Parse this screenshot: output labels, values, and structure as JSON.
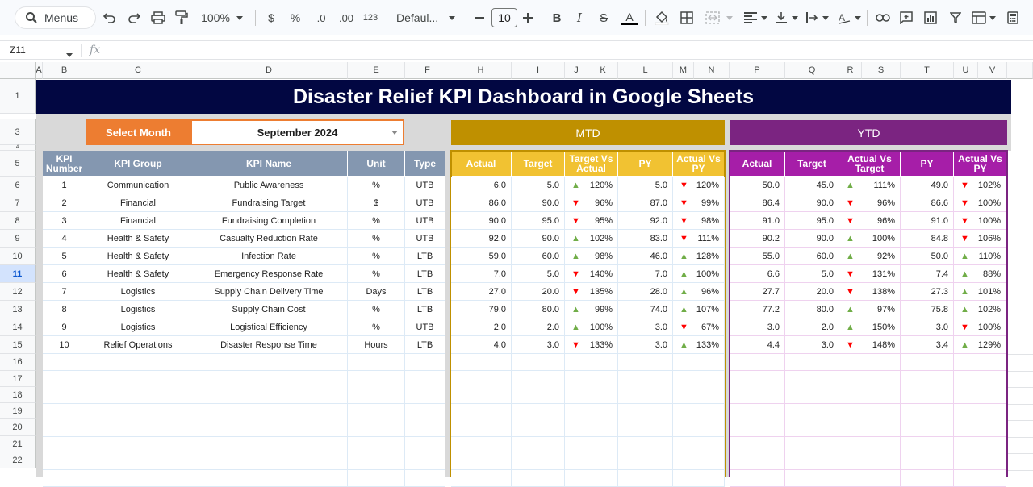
{
  "toolbar": {
    "search_label": "Menus",
    "zoom": "100%",
    "currency": "$",
    "percent": "%",
    "dec_decrease": ".0",
    "dec_increase": ".00",
    "number_format": "123",
    "font": "Defaul...",
    "font_size": "10"
  },
  "formula_bar": {
    "cell_ref": "Z11",
    "fx": "fx"
  },
  "columns": [
    "A",
    "B",
    "C",
    "D",
    "E",
    "F",
    "H",
    "I",
    "J",
    "K",
    "L",
    "M",
    "N",
    "P",
    "Q",
    "R",
    "S",
    "T",
    "U",
    "V"
  ],
  "rows": [
    "1",
    "3",
    "4",
    "5",
    "6",
    "7",
    "8",
    "9",
    "10",
    "11",
    "12",
    "13",
    "14",
    "15",
    "16",
    "17",
    "18",
    "19",
    "20",
    "21",
    "22"
  ],
  "dashboard": {
    "title": "Disaster Relief KPI Dashboard in Google Sheets",
    "select_month_label": "Select Month",
    "selected_month": "September 2024",
    "mtd_label": "MTD",
    "ytd_label": "YTD",
    "colors": {
      "title_bg": "#020742",
      "select_bg": "#ed7d31",
      "mtd": "#bf9000",
      "mtd_header": "#f1c232",
      "ytd": "#7b2481",
      "ytd_header": "#a61ea8",
      "left_header": "#8497b0",
      "up": "#70ad47",
      "down": "#ff0000"
    },
    "left_headers": [
      "KPI Number",
      "KPI Group",
      "KPI Name",
      "Unit",
      "Type"
    ],
    "mtd_headers": [
      "Actual",
      "Target",
      "Target Vs Actual",
      "PY",
      "Actual Vs PY"
    ],
    "ytd_headers": [
      "Actual",
      "Target",
      "Actual Vs Target",
      "PY",
      "Actual Vs PY"
    ],
    "kpis": [
      {
        "num": "1",
        "group": "Communication",
        "name": "Public Awareness",
        "unit": "%",
        "type": "UTB",
        "m_actual": "6.0",
        "m_target": "5.0",
        "m_tva_dir": "up",
        "m_tva": "120%",
        "m_py": "5.0",
        "m_avp_dir": "down",
        "m_avp": "120%",
        "y_actual": "50.0",
        "y_target": "45.0",
        "y_avt_dir": "up",
        "y_avt": "111%",
        "y_py": "49.0",
        "y_avp_dir": "down",
        "y_avp": "102%"
      },
      {
        "num": "2",
        "group": "Financial",
        "name": "Fundraising Target",
        "unit": "$",
        "type": "UTB",
        "m_actual": "86.0",
        "m_target": "90.0",
        "m_tva_dir": "down",
        "m_tva": "96%",
        "m_py": "87.0",
        "m_avp_dir": "down",
        "m_avp": "99%",
        "y_actual": "86.4",
        "y_target": "90.0",
        "y_avt_dir": "down",
        "y_avt": "96%",
        "y_py": "86.6",
        "y_avp_dir": "down",
        "y_avp": "100%"
      },
      {
        "num": "3",
        "group": "Financial",
        "name": "Fundraising Completion",
        "unit": "%",
        "type": "UTB",
        "m_actual": "90.0",
        "m_target": "95.0",
        "m_tva_dir": "down",
        "m_tva": "95%",
        "m_py": "92.0",
        "m_avp_dir": "down",
        "m_avp": "98%",
        "y_actual": "91.0",
        "y_target": "95.0",
        "y_avt_dir": "down",
        "y_avt": "96%",
        "y_py": "91.0",
        "y_avp_dir": "down",
        "y_avp": "100%"
      },
      {
        "num": "4",
        "group": "Health & Safety",
        "name": "Casualty Reduction Rate",
        "unit": "%",
        "type": "UTB",
        "m_actual": "92.0",
        "m_target": "90.0",
        "m_tva_dir": "up",
        "m_tva": "102%",
        "m_py": "83.0",
        "m_avp_dir": "down",
        "m_avp": "111%",
        "y_actual": "90.2",
        "y_target": "90.0",
        "y_avt_dir": "up",
        "y_avt": "100%",
        "y_py": "84.8",
        "y_avp_dir": "down",
        "y_avp": "106%"
      },
      {
        "num": "5",
        "group": "Health & Safety",
        "name": "Infection Rate",
        "unit": "%",
        "type": "LTB",
        "m_actual": "59.0",
        "m_target": "60.0",
        "m_tva_dir": "up",
        "m_tva": "98%",
        "m_py": "46.0",
        "m_avp_dir": "up",
        "m_avp": "128%",
        "y_actual": "55.0",
        "y_target": "60.0",
        "y_avt_dir": "up",
        "y_avt": "92%",
        "y_py": "50.0",
        "y_avp_dir": "up",
        "y_avp": "110%"
      },
      {
        "num": "6",
        "group": "Health & Safety",
        "name": "Emergency Response Rate",
        "unit": "%",
        "type": "LTB",
        "m_actual": "7.0",
        "m_target": "5.0",
        "m_tva_dir": "down",
        "m_tva": "140%",
        "m_py": "7.0",
        "m_avp_dir": "up",
        "m_avp": "100%",
        "y_actual": "6.6",
        "y_target": "5.0",
        "y_avt_dir": "down",
        "y_avt": "131%",
        "y_py": "7.4",
        "y_avp_dir": "up",
        "y_avp": "88%"
      },
      {
        "num": "7",
        "group": "Logistics",
        "name": "Supply Chain Delivery Time",
        "unit": "Days",
        "type": "LTB",
        "m_actual": "27.0",
        "m_target": "20.0",
        "m_tva_dir": "down",
        "m_tva": "135%",
        "m_py": "28.0",
        "m_avp_dir": "up",
        "m_avp": "96%",
        "y_actual": "27.7",
        "y_target": "20.0",
        "y_avt_dir": "down",
        "y_avt": "138%",
        "y_py": "27.3",
        "y_avp_dir": "up",
        "y_avp": "101%"
      },
      {
        "num": "8",
        "group": "Logistics",
        "name": "Supply Chain Cost",
        "unit": "%",
        "type": "LTB",
        "m_actual": "79.0",
        "m_target": "80.0",
        "m_tva_dir": "up",
        "m_tva": "99%",
        "m_py": "74.0",
        "m_avp_dir": "up",
        "m_avp": "107%",
        "y_actual": "77.2",
        "y_target": "80.0",
        "y_avt_dir": "up",
        "y_avt": "97%",
        "y_py": "75.8",
        "y_avp_dir": "up",
        "y_avp": "102%"
      },
      {
        "num": "9",
        "group": "Logistics",
        "name": "Logistical Efficiency",
        "unit": "%",
        "type": "UTB",
        "m_actual": "2.0",
        "m_target": "2.0",
        "m_tva_dir": "up",
        "m_tva": "100%",
        "m_py": "3.0",
        "m_avp_dir": "down",
        "m_avp": "67%",
        "y_actual": "3.0",
        "y_target": "2.0",
        "y_avt_dir": "up",
        "y_avt": "150%",
        "y_py": "3.0",
        "y_avp_dir": "down",
        "y_avp": "100%"
      },
      {
        "num": "10",
        "group": "Relief Operations",
        "name": "Disaster Response Time",
        "unit": "Hours",
        "type": "LTB",
        "m_actual": "4.0",
        "m_target": "3.0",
        "m_tva_dir": "down",
        "m_tva": "133%",
        "m_py": "3.0",
        "m_avp_dir": "up",
        "m_avp": "133%",
        "y_actual": "4.4",
        "y_target": "3.0",
        "y_avt_dir": "down",
        "y_avt": "148%",
        "y_py": "3.4",
        "y_avp_dir": "up",
        "y_avp": "129%"
      }
    ]
  }
}
